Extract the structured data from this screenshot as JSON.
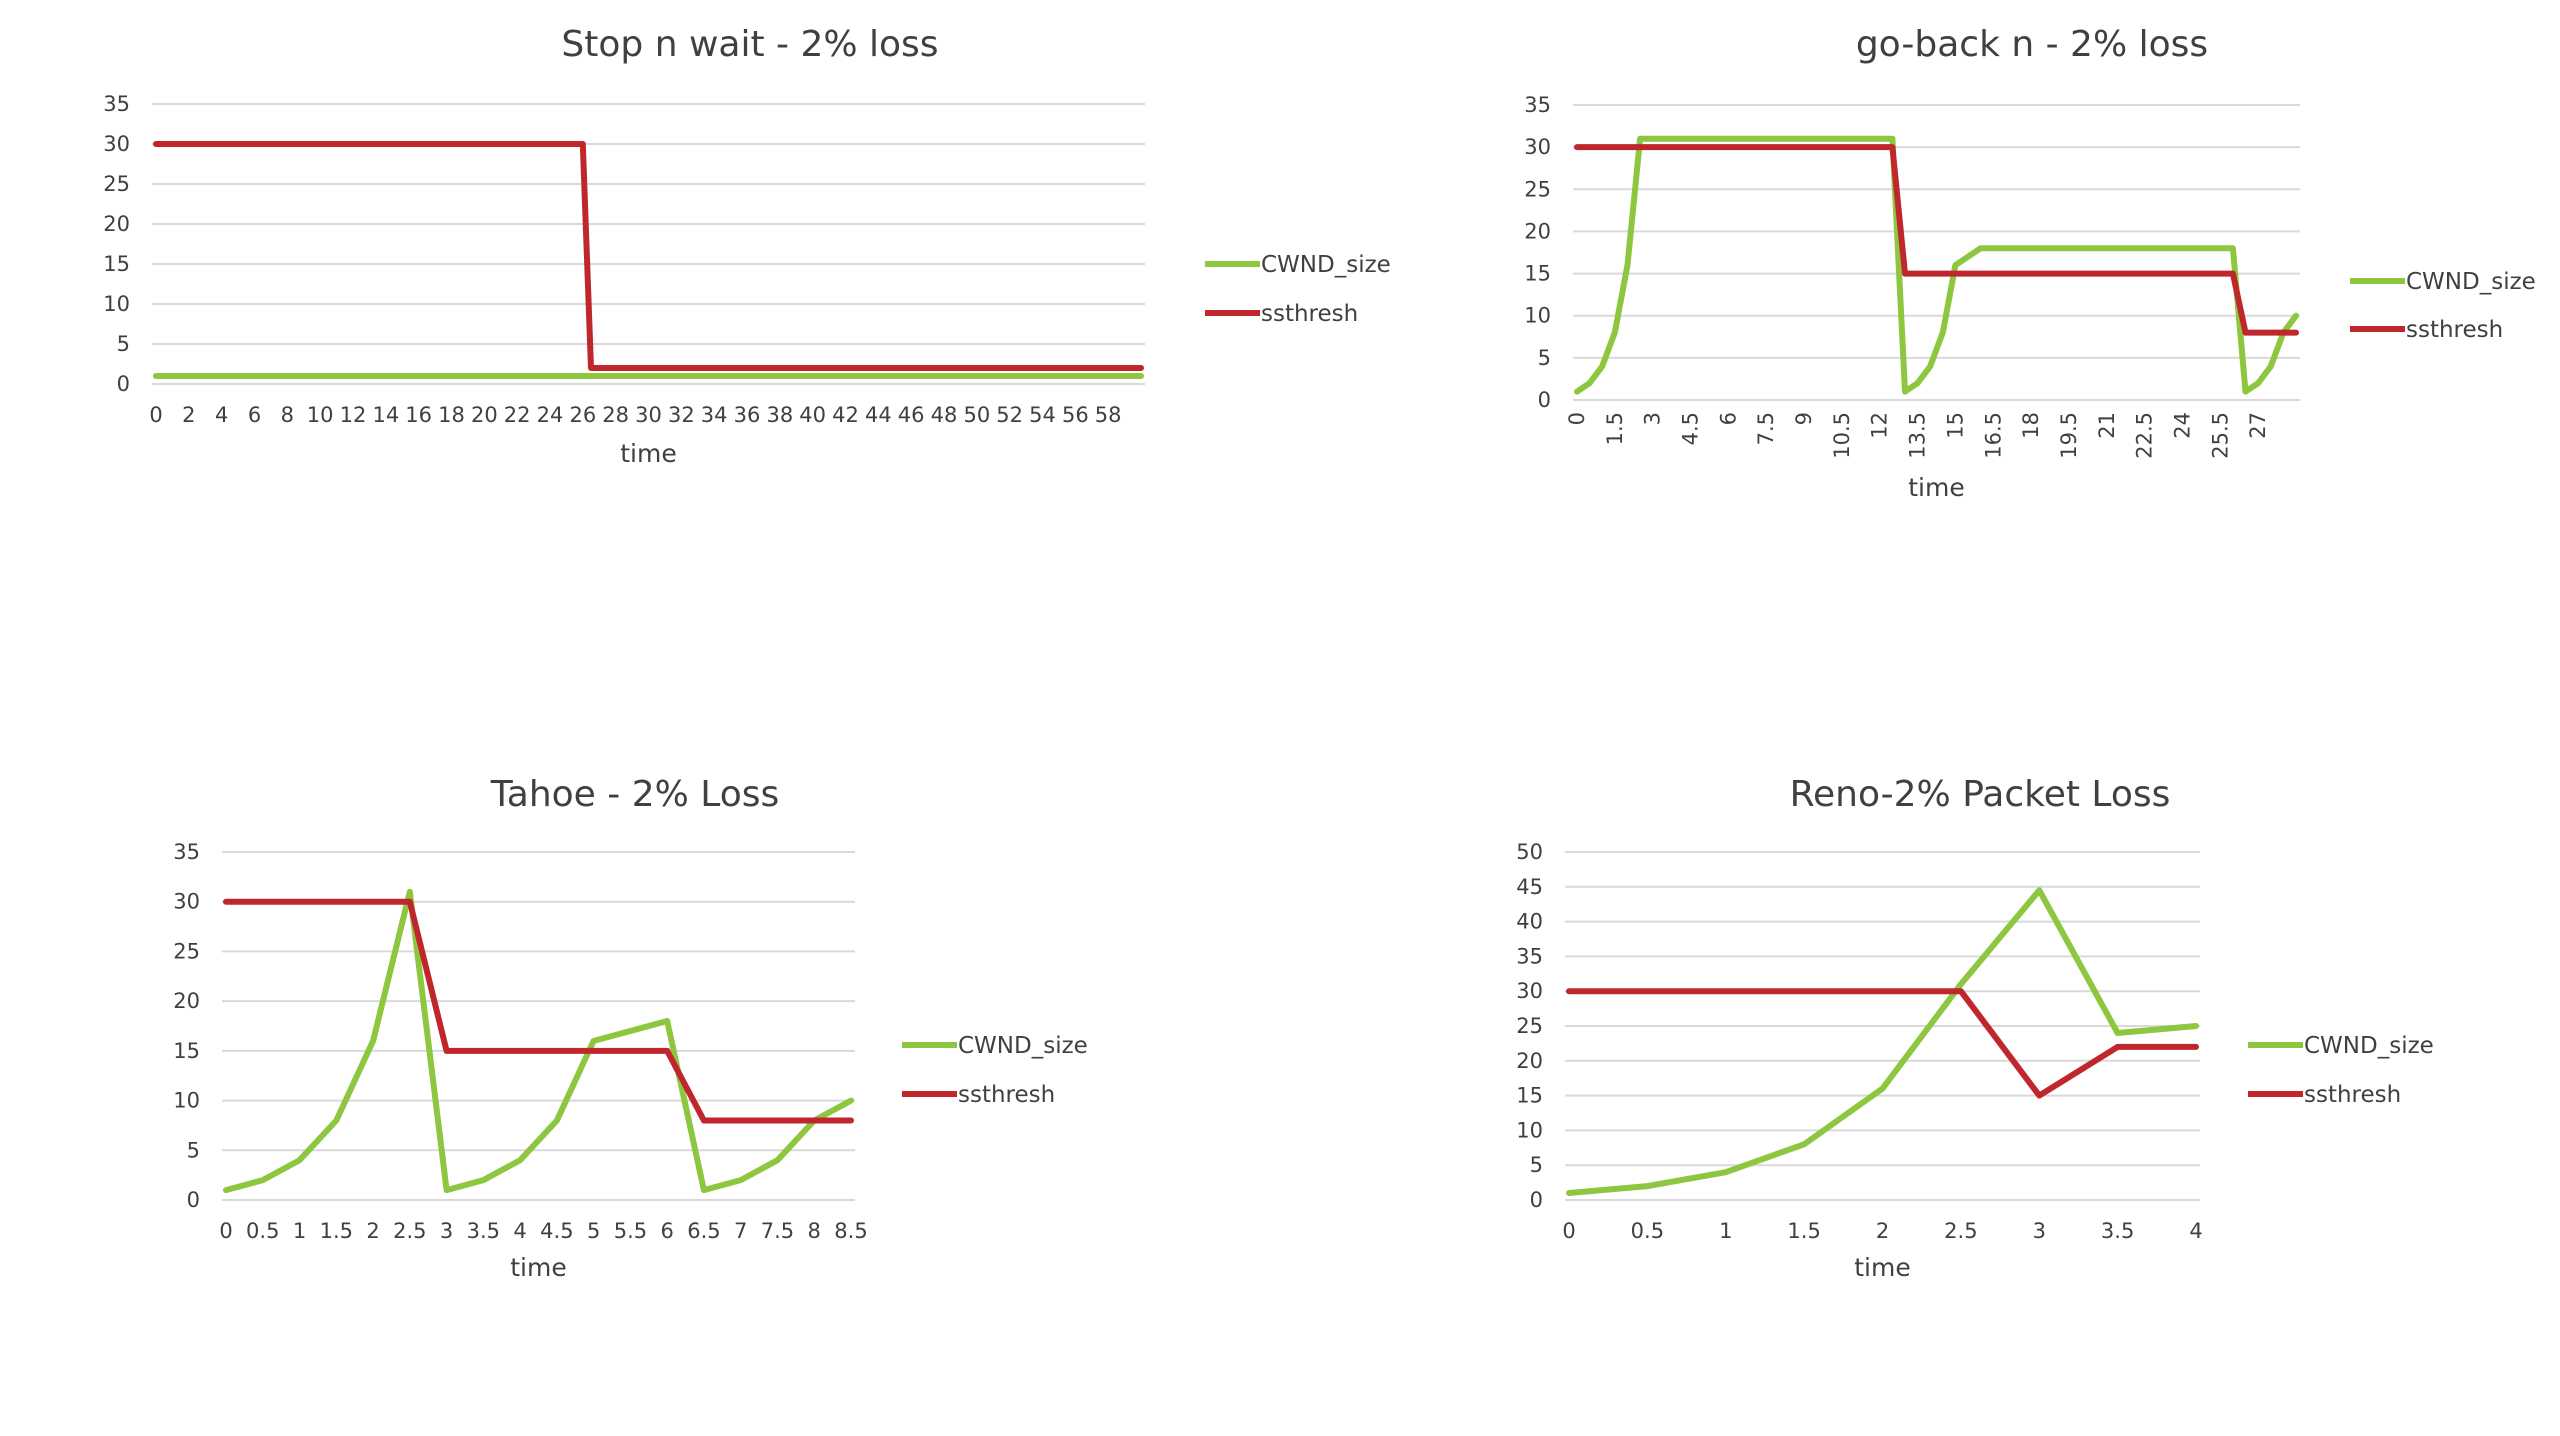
{
  "colors": {
    "cwnd": "#8dc63f",
    "ssthresh": "#c0272d",
    "grid": "#d9d9d9",
    "text": "#404040"
  },
  "chart_data": [
    {
      "type": "line",
      "title": "Stop n wait - 2% loss",
      "xlabel": "time",
      "ylabel": "",
      "ylim": [
        0,
        35
      ],
      "yticks": [
        "0",
        "5",
        "10",
        "15",
        "20",
        "25",
        "30",
        "35"
      ],
      "xticks": [
        "0",
        "2",
        "4",
        "6",
        "8",
        "10",
        "12",
        "14",
        "16",
        "18",
        "20",
        "22",
        "24",
        "26",
        "28",
        "30",
        "32",
        "34",
        "36",
        "38",
        "40",
        "42",
        "44",
        "46",
        "48",
        "50",
        "52",
        "54",
        "56",
        "58"
      ],
      "xlim": [
        0,
        60
      ],
      "grid": true,
      "legend_position": "right",
      "series": [
        {
          "name": "CWND_size",
          "color": "#8dc63f",
          "x": [
            0,
            60
          ],
          "y": [
            1,
            1
          ]
        },
        {
          "name": "ssthresh",
          "color": "#c0272d",
          "x": [
            0,
            26,
            26.5,
            60
          ],
          "y": [
            30,
            30,
            2,
            2
          ]
        }
      ]
    },
    {
      "type": "line",
      "title": "go-back n - 2%  loss",
      "xlabel": "time",
      "ylabel": "",
      "ylim": [
        0,
        35
      ],
      "yticks": [
        "0",
        "5",
        "10",
        "15",
        "20",
        "25",
        "30",
        "35"
      ],
      "xticks": [
        "0",
        "1.5",
        "3",
        "4.5",
        "6",
        "7.5",
        "9",
        "10.5",
        "12",
        "13.5",
        "15",
        "16.5",
        "18",
        "19.5",
        "21",
        "22.5",
        "24",
        "25.5",
        "27"
      ],
      "xlim": [
        0,
        28.5
      ],
      "rotated_xticks": true,
      "grid": true,
      "legend_position": "right",
      "series": [
        {
          "name": "CWND_size",
          "color": "#8dc63f",
          "x": [
            0,
            0.5,
            1,
            1.5,
            2,
            2.5,
            3,
            12.5,
            13,
            13.5,
            14,
            14.5,
            15,
            16,
            26,
            26.5,
            27,
            27.5,
            28,
            28.5
          ],
          "y": [
            1,
            2,
            4,
            8,
            16,
            31,
            31,
            31,
            1,
            2,
            4,
            8,
            16,
            18,
            18,
            1,
            2,
            4,
            8,
            10
          ]
        },
        {
          "name": "ssthresh",
          "color": "#c0272d",
          "x": [
            0,
            12.5,
            13,
            26,
            26.5,
            28.5
          ],
          "y": [
            30,
            30,
            15,
            15,
            8,
            8
          ]
        }
      ]
    },
    {
      "type": "line",
      "title": "Tahoe - 2% Loss",
      "xlabel": "time",
      "ylabel": "",
      "ylim": [
        0,
        35
      ],
      "yticks": [
        "0",
        "5",
        "10",
        "15",
        "20",
        "25",
        "30",
        "35"
      ],
      "xticks": [
        "0",
        "0.5",
        "1",
        "1.5",
        "2",
        "2.5",
        "3",
        "3.5",
        "4",
        "4.5",
        "5",
        "5.5",
        "6",
        "6.5",
        "7",
        "7.5",
        "8",
        "8.5"
      ],
      "xlim": [
        0,
        8.5
      ],
      "grid": true,
      "legend_position": "right",
      "series": [
        {
          "name": "CWND_size",
          "color": "#8dc63f",
          "x": [
            0,
            0.5,
            1,
            1.5,
            2,
            2.5,
            3,
            3.5,
            4,
            4.5,
            5,
            5.5,
            6,
            6.5,
            7,
            7.5,
            8,
            8.5
          ],
          "y": [
            1,
            2,
            4,
            8,
            16,
            31,
            1,
            2,
            4,
            8,
            16,
            17,
            18,
            1,
            2,
            4,
            8,
            10
          ]
        },
        {
          "name": "ssthresh",
          "color": "#c0272d",
          "x": [
            0,
            2.5,
            3,
            6,
            6.5,
            8.5
          ],
          "y": [
            30,
            30,
            15,
            15,
            8,
            8
          ]
        }
      ]
    },
    {
      "type": "line",
      "title": "Reno-2% Packet Loss",
      "xlabel": "time",
      "ylabel": "",
      "ylim": [
        0,
        50
      ],
      "yticks": [
        "0",
        "5",
        "10",
        "15",
        "20",
        "25",
        "30",
        "35",
        "40",
        "45",
        "50"
      ],
      "xticks": [
        "0",
        "0.5",
        "1",
        "1.5",
        "2",
        "2.5",
        "3",
        "3.5",
        "4"
      ],
      "xlim": [
        0,
        4
      ],
      "grid": true,
      "legend_position": "right",
      "series": [
        {
          "name": "CWND_size",
          "color": "#8dc63f",
          "x": [
            0,
            0.5,
            1,
            1.5,
            2,
            2.5,
            3,
            3.5,
            4
          ],
          "y": [
            1,
            2,
            4,
            8,
            16,
            31,
            44.5,
            24,
            25
          ]
        },
        {
          "name": "ssthresh",
          "color": "#c0272d",
          "x": [
            0,
            2.5,
            3,
            3.5,
            4
          ],
          "y": [
            30,
            30,
            15,
            22,
            22
          ]
        }
      ]
    }
  ]
}
